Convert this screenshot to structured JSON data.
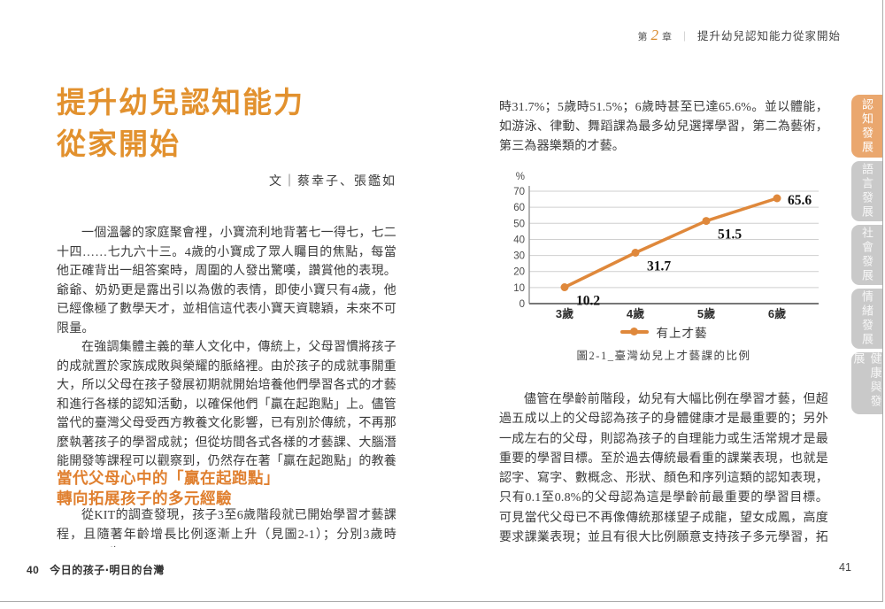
{
  "header": {
    "chapter_prefix": "第",
    "chapter_number": "2",
    "chapter_suffix": "章",
    "separator": "｜",
    "chapter_title": "提升幼兒認知能力從家開始"
  },
  "left": {
    "title_line1": "提升幼兒認知能力",
    "title_line2": "從家開始",
    "byline": "文｜蔡幸子、張鑑如",
    "para1": "一個溫馨的家庭聚會裡，小寶流利地背著七一得七，七二十四……七九六十三。4歲的小寶成了眾人矚目的焦點，每當他正確背出一組答案時，周圍的人發出驚嘆，讚賞他的表現。爺爺、奶奶更是露出引以為傲的表情，即使小寶只有4歲，他已經像極了數學天才，並相信這代表小寶天資聰穎，未來不可限量。",
    "para2": "在強調集體主義的華人文化中，傳統上，父母習慣將孩子的成就置於家族成敗與榮耀的脈絡裡。由於孩子的成就事關重大，所以父母在孩子發展初期就開始培養他們學習各式的才藝和進行各樣的認知活動，以確保他們「贏在起跑點」上。儘管當代的臺灣父母受西方教養文化影響，已有別於傳統，不再那麼執著孩子的學習成就；但從坊間各式各樣的才藝課、大腦潛能開發等課程可以觀察到，仍然存在著「贏在起跑點」的教養氛圍。",
    "heading_line1": "當代父母心中的「贏在起跑點」",
    "heading_line2": "轉向拓展孩子的多元經驗",
    "para3": "從KIT的調查發現，孩子3至6歲階段就已開始學習才藝課程，且隨著年齡增長比例逐漸上升（見圖2-1）；分別3歲時10.2%，4歲",
    "footer_page": "40",
    "footer_title": "今日的孩子‧明日的台灣"
  },
  "right": {
    "para1": "時31.7%；5歲時51.5%；6歲時甚至已達65.6%。並以體能，如游泳、律動、舞蹈課為最多幼兒選擇學習，第二為藝術，第三為器樂類的才藝。",
    "para2": "儘管在學齡前階段，幼兒有大幅比例在學習才藝，但超過五成以上的父母認為孩子的身體健康才是最重要的；另外一成左右的父母，則認為孩子的自理能力或生活常規才是最重要的學習目標。至於過去傳統最看重的課業表現，也就是認字、寫字、數概念、形狀、顏色和序列這類的認知表現，只有0.1至0.8%的父母認為這是學齡前最重要的學習目標。可見當代父母已不再像傳統那樣望子成龍，望女成鳳，高度要求課業表現；並且有很大比例願意支持孩子多元學習，拓展不同的經驗。（見下頁圖2-2）",
    "footer_page": "41"
  },
  "sidebar": {
    "tabs": [
      {
        "label": "認知發展",
        "active": true
      },
      {
        "label": "語言發展",
        "active": false
      },
      {
        "label": "社會發展",
        "active": false
      },
      {
        "label": "情緒發展",
        "active": false
      },
      {
        "label": "健康與發展",
        "active": false
      }
    ]
  },
  "chart_data": {
    "type": "line",
    "caption": "圖2-1_臺灣幼兒上才藝課的比例",
    "categories": [
      "3歲",
      "4歲",
      "5歲",
      "6歲"
    ],
    "series": [
      {
        "name": "有上才藝",
        "values": [
          10.2,
          31.7,
          51.5,
          65.6
        ]
      }
    ],
    "data_labels": [
      "10.2",
      "31.7",
      "51.5",
      "65.6"
    ],
    "ylabel": "%",
    "ylim": [
      0,
      70
    ],
    "ytick_step": 10,
    "grid": "horizontal",
    "legend_position": "bottom",
    "line_color": "#df883b"
  },
  "colors": {
    "accent_orange": "#e2912e",
    "heading_orange": "#e08030",
    "chart_line": "#df883b",
    "tab_active": "#eaa76e",
    "tab_inactive": "#c9c9c9"
  }
}
